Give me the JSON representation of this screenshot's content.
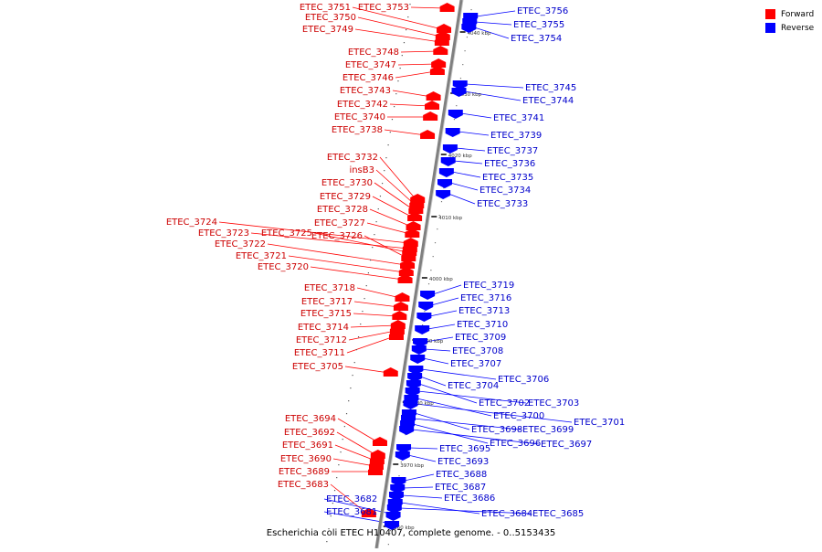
{
  "caption": "Escherichia coli ETEC H10407, complete genome. - 0..5153435",
  "legend": [
    {
      "label": "Forward",
      "color": "#ff0000"
    },
    {
      "label": "Reverse",
      "color": "#0000ff"
    }
  ],
  "colors": {
    "forward": "#ff0000",
    "reverse": "#0000ff",
    "axis": "#808080"
  },
  "scale": {
    "unit": "kbp",
    "ticks": [
      4040,
      4030,
      4020,
      4010,
      4000,
      3990,
      3980,
      3970,
      3960
    ]
  },
  "genes": {
    "forward": [
      "ETEC_3751",
      "ETEC_3753",
      "ETEC_3750",
      "ETEC_3749",
      "ETEC_3748",
      "ETEC_3747",
      "ETEC_3746",
      "ETEC_3743",
      "ETEC_3742",
      "ETEC_3740",
      "ETEC_3738",
      "ETEC_3732",
      "insB3",
      "ETEC_3730",
      "ETEC_3729",
      "ETEC_3728",
      "ETEC_3727",
      "ETEC_3724",
      "ETEC_3723",
      "ETEC_3725",
      "ETEC_3726",
      "ETEC_3722",
      "ETEC_3721",
      "ETEC_3720",
      "ETEC_3718",
      "ETEC_3717",
      "ETEC_3715",
      "ETEC_3714",
      "ETEC_3712",
      "ETEC_3711",
      "ETEC_3705",
      "ETEC_3694",
      "ETEC_3692",
      "ETEC_3691",
      "ETEC_3690",
      "ETEC_3689",
      "ETEC_3683"
    ],
    "reverse": [
      "ETEC_3756",
      "ETEC_3755",
      "ETEC_3754",
      "ETEC_3745",
      "ETEC_3744",
      "ETEC_3741",
      "ETEC_3739",
      "ETEC_3737",
      "ETEC_3736",
      "ETEC_3735",
      "ETEC_3734",
      "ETEC_3733",
      "ETEC_3719",
      "ETEC_3716",
      "ETEC_3713",
      "ETEC_3710",
      "ETEC_3709",
      "ETEC_3708",
      "ETEC_3707",
      "ETEC_3706",
      "ETEC_3704",
      "ETEC_3702",
      "ETEC_3703",
      "ETEC_3700",
      "ETEC_3701",
      "ETEC_3698",
      "ETEC_3699",
      "ETEC_3696",
      "ETEC_3697",
      "ETEC_3695",
      "ETEC_3693",
      "ETEC_3688",
      "ETEC_3687",
      "ETEC_3686",
      "ETEC_3684",
      "ETEC_3685",
      "ETEC_3682",
      "ETEC_3681"
    ]
  }
}
